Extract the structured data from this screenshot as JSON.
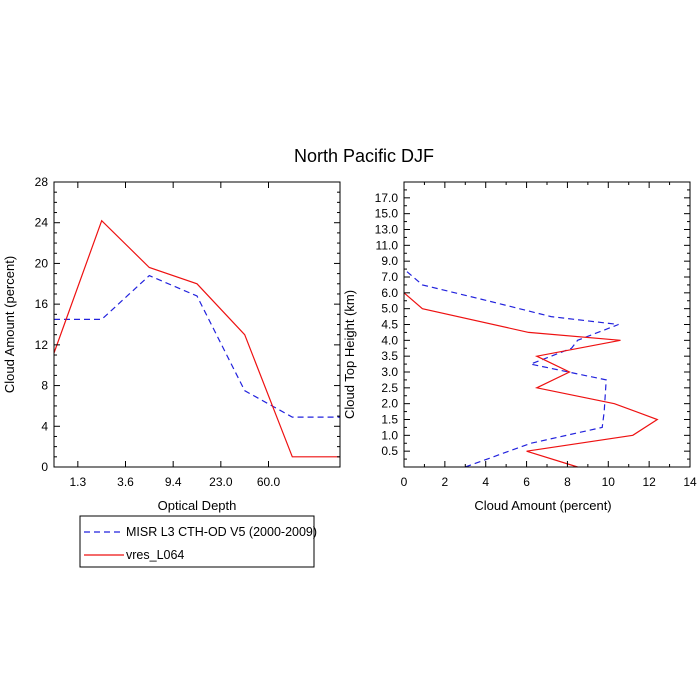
{
  "title": "North Pacific DJF",
  "colors": {
    "misr": "#2222dd",
    "model": "#ee1111",
    "axes": "#000000"
  },
  "chart_data": [
    {
      "type": "line",
      "xlabel": "Optical Depth",
      "ylabel": "Cloud Amount (percent)",
      "x_categories": [
        "",
        "1.3",
        "3.6",
        "9.4",
        "23.0",
        "60.0",
        ""
      ],
      "xlim": [
        0,
        6
      ],
      "ylim": [
        0,
        28
      ],
      "y_ticks": [
        0,
        4,
        8,
        12,
        16,
        20,
        24,
        28
      ],
      "series": [
        {
          "name": "MISR L3 CTH-OD V5 (2000-2009)",
          "style": "dashed",
          "x": [
            0,
            1,
            2,
            3,
            4,
            5,
            6
          ],
          "y": [
            14.5,
            14.5,
            18.8,
            16.8,
            7.5,
            4.9,
            4.9
          ]
        },
        {
          "name": "vres_L064",
          "style": "solid",
          "x": [
            0,
            1,
            2,
            3,
            4,
            5,
            6
          ],
          "y": [
            11.2,
            24.2,
            19.6,
            18.0,
            13.0,
            1.0,
            1.0
          ]
        }
      ]
    },
    {
      "type": "line",
      "xlabel": "Cloud Amount (percent)",
      "ylabel": "Cloud Top Height (km)",
      "x_ticks": [
        0,
        2,
        4,
        6,
        8,
        10,
        12,
        14
      ],
      "xlim": [
        0,
        14
      ],
      "y_categories": [
        "0.5",
        "1.0",
        "1.5",
        "2.0",
        "2.5",
        "3.0",
        "3.5",
        "4.0",
        "4.5",
        "5.0",
        "6.0",
        "7.0",
        "9.0",
        "11.0",
        "13.0",
        "15.0",
        "17.0"
      ],
      "y_label_levels": [
        0.5,
        1.5,
        2.5,
        3.5,
        4.5,
        5.5,
        6.5,
        7.5,
        8.5,
        9.5,
        10.5,
        11.5,
        12.5,
        13.5,
        14.5,
        15.5,
        16.5
      ],
      "ylim": [
        -0.5,
        17.5
      ],
      "series": [
        {
          "name": "MISR L3 CTH-OD V5 (2000-2009)",
          "style": "dashed",
          "x": [
            3.0,
            6.2,
            9.7,
            9.8,
            9.9,
            6.2,
            8.2,
            8.5,
            10.5,
            7.2,
            4.1,
            0.9,
            0.0
          ],
          "y": [
            -0.5,
            1.0,
            2.0,
            3.0,
            5.0,
            6.0,
            7.0,
            7.5,
            8.5,
            9.0,
            10.0,
            11.0,
            12.0
          ]
        },
        {
          "name": "vres_L064",
          "style": "solid",
          "x": [
            8.5,
            6.0,
            11.2,
            12.4,
            10.3,
            6.5,
            8.1,
            6.5,
            10.6,
            6.1,
            0.9,
            0.0
          ],
          "y": [
            -0.5,
            0.5,
            1.5,
            2.5,
            3.5,
            4.5,
            5.5,
            6.5,
            7.5,
            8.0,
            9.5,
            10.5
          ]
        }
      ]
    }
  ],
  "legend": {
    "entries": [
      {
        "label": "MISR L3 CTH-OD V5 (2000-2009)",
        "style": "dashed"
      },
      {
        "label": "vres_L064",
        "style": "solid"
      }
    ]
  }
}
